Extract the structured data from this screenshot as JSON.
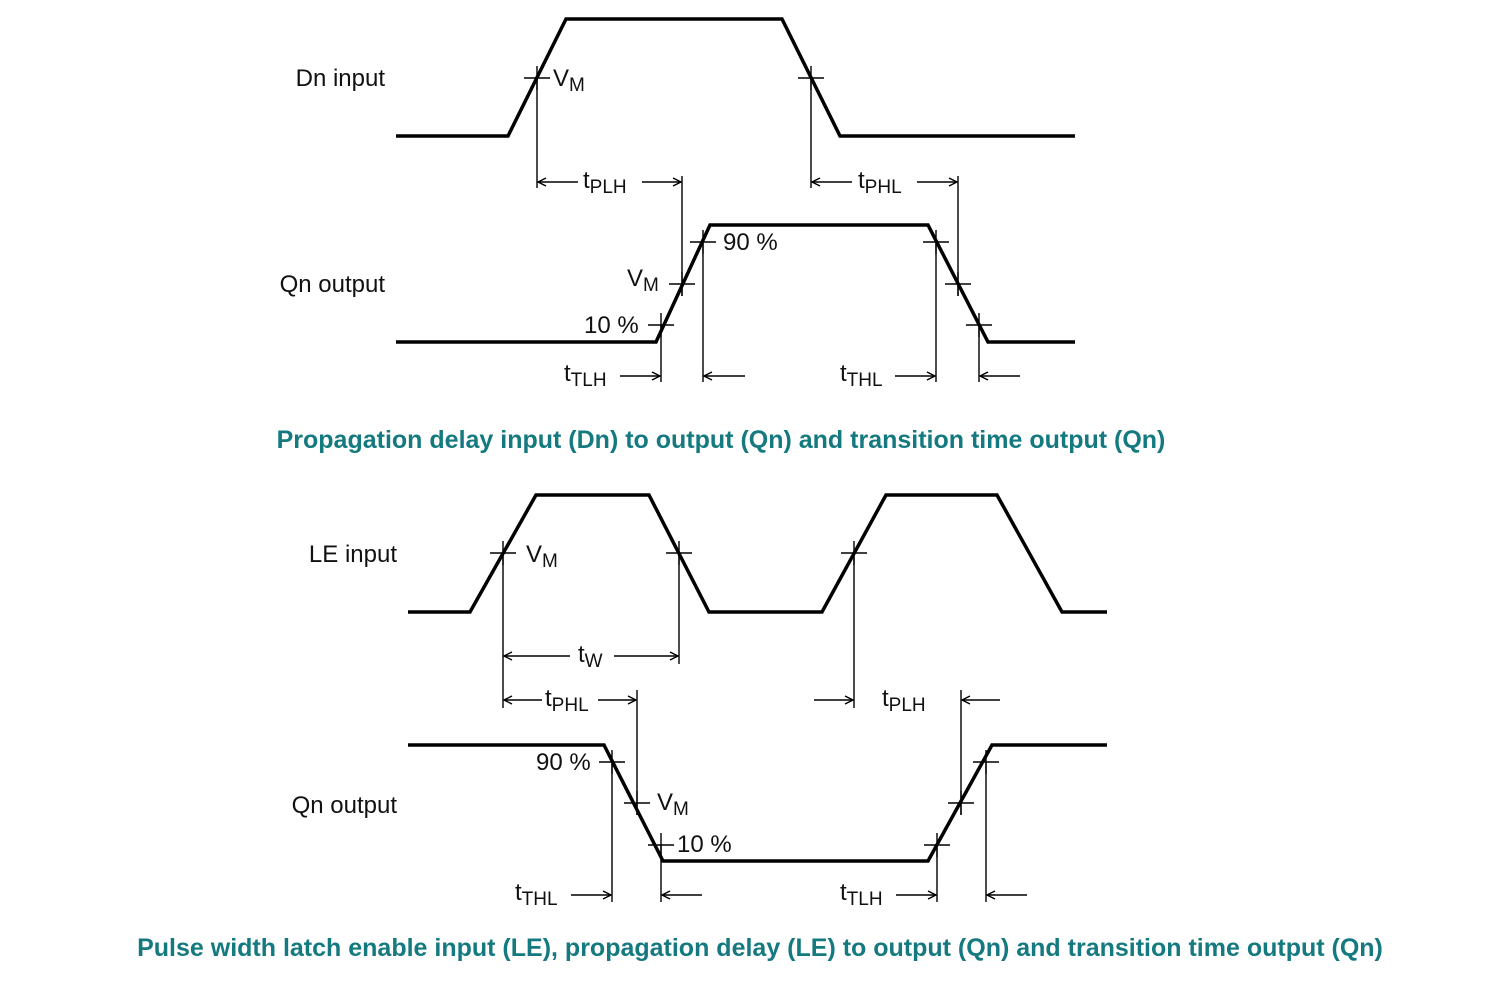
{
  "diagram1": {
    "signals": {
      "dn_input": "Dn input",
      "qn_output": "Qn output"
    },
    "labels": {
      "vm_top_main": "V",
      "vm_top_sub": "M",
      "tplh_main": "t",
      "tplh_sub": "PLH",
      "tphl_main": "t",
      "tphl_sub": "PHL",
      "ninety": "90 %",
      "vm_q_main": "V",
      "vm_q_sub": "M",
      "ten": "10 %",
      "ttlh_main": "t",
      "ttlh_sub": "TLH",
      "tthl_main": "t",
      "tthl_sub": "THL"
    },
    "caption": "Propagation delay input (Dn) to output (Qn) and transition time output (Qn)"
  },
  "diagram2": {
    "signals": {
      "le_input": "LE input",
      "qn_output": "Qn output"
    },
    "labels": {
      "vm_le_main": "V",
      "vm_le_sub": "M",
      "tw_main": "t",
      "tw_sub": "W",
      "tphl_main": "t",
      "tphl_sub": "PHL",
      "tplh_main": "t",
      "tplh_sub": "PLH",
      "ninety": "90 %",
      "vm_q_main": "V",
      "vm_q_sub": "M",
      "ten": "10 %",
      "tthl_main": "t",
      "tthl_sub": "THL",
      "ttlh_main": "t",
      "ttlh_sub": "TLH"
    },
    "caption": "Pulse width latch enable input (LE), propagation delay (LE) to output (Qn) and transition time output (Qn)"
  },
  "colors": {
    "caption": "#147a80",
    "waveform": "#000000"
  }
}
